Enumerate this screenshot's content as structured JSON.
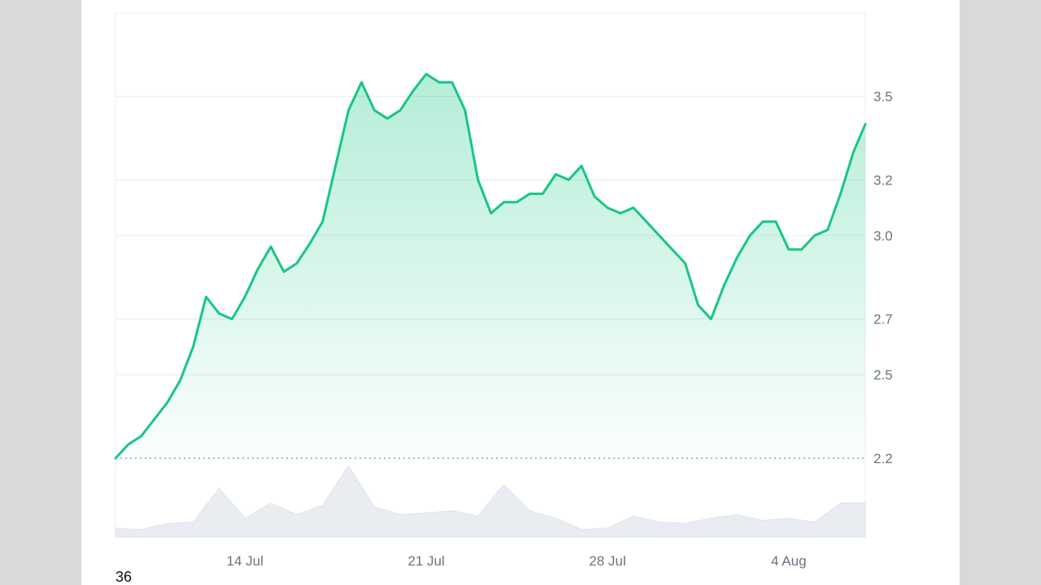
{
  "footer_number": "36",
  "colors": {
    "line": "#16c784",
    "fill_top": "#16c784",
    "grid": "#e8eaee",
    "baseline": "#9aa0a6",
    "volume_fill": "#e9edf2",
    "axis_text": "#6b7280"
  },
  "chart_data": {
    "type": "area",
    "title": "",
    "xlabel": "",
    "ylabel": "",
    "grid": true,
    "x_start": "2024-07-09",
    "x_end": "2024-08-06",
    "ylim": [
      2.2,
      3.7
    ],
    "baseline_value": 2.2,
    "x_ticks": [
      {
        "label": "14 Jul",
        "date": "2024-07-14"
      },
      {
        "label": "21 Jul",
        "date": "2024-07-21"
      },
      {
        "label": "28 Jul",
        "date": "2024-07-28"
      },
      {
        "label": "4 Aug",
        "date": "2024-08-04"
      }
    ],
    "y_ticks": [
      {
        "label": "3.5",
        "value": 3.5
      },
      {
        "label": "3.2",
        "value": 3.2
      },
      {
        "label": "3.0",
        "value": 3.0
      },
      {
        "label": "2.7",
        "value": 2.7
      },
      {
        "label": "2.5",
        "value": 2.5
      },
      {
        "label": "2.2",
        "value": 2.2
      }
    ],
    "series": [
      {
        "x": [
          "2024-07-09 00:00",
          "2024-07-09 12:00",
          "2024-07-10 00:00",
          "2024-07-10 12:00",
          "2024-07-11 00:00",
          "2024-07-11 12:00",
          "2024-07-12 00:00",
          "2024-07-12 12:00",
          "2024-07-13 00:00",
          "2024-07-13 12:00",
          "2024-07-14 00:00",
          "2024-07-14 12:00",
          "2024-07-15 00:00",
          "2024-07-15 12:00",
          "2024-07-16 00:00",
          "2024-07-16 12:00",
          "2024-07-17 00:00",
          "2024-07-17 12:00",
          "2024-07-18 00:00",
          "2024-07-18 12:00",
          "2024-07-19 00:00",
          "2024-07-19 12:00",
          "2024-07-20 00:00",
          "2024-07-20 12:00",
          "2024-07-21 00:00",
          "2024-07-21 12:00",
          "2024-07-22 00:00",
          "2024-07-22 12:00",
          "2024-07-23 00:00",
          "2024-07-23 12:00",
          "2024-07-24 00:00",
          "2024-07-24 12:00",
          "2024-07-25 00:00",
          "2024-07-25 12:00",
          "2024-07-26 00:00",
          "2024-07-26 12:00",
          "2024-07-27 00:00",
          "2024-07-27 12:00",
          "2024-07-28 00:00",
          "2024-07-28 12:00",
          "2024-07-29 00:00",
          "2024-07-29 12:00",
          "2024-07-30 00:00",
          "2024-07-30 12:00",
          "2024-07-31 00:00",
          "2024-07-31 12:00",
          "2024-08-01 00:00",
          "2024-08-01 12:00",
          "2024-08-02 00:00",
          "2024-08-02 12:00",
          "2024-08-03 00:00",
          "2024-08-03 12:00",
          "2024-08-04 00:00",
          "2024-08-04 12:00",
          "2024-08-05 00:00",
          "2024-08-05 12:00",
          "2024-08-06 00:00",
          "2024-08-06 12:00",
          "2024-08-06 23:00"
        ],
        "values": [
          2.2,
          2.25,
          2.28,
          2.34,
          2.4,
          2.48,
          2.6,
          2.78,
          2.72,
          2.7,
          2.78,
          2.88,
          2.96,
          2.87,
          2.9,
          2.97,
          3.05,
          3.25,
          3.45,
          3.55,
          3.45,
          3.42,
          3.45,
          3.52,
          3.58,
          3.55,
          3.55,
          3.45,
          3.2,
          3.08,
          3.12,
          3.12,
          3.15,
          3.15,
          3.22,
          3.2,
          3.25,
          3.14,
          3.1,
          3.08,
          3.1,
          3.05,
          3.0,
          2.95,
          2.9,
          2.75,
          2.7,
          2.82,
          2.92,
          3.0,
          3.05,
          3.05,
          2.95,
          2.95,
          3.0,
          3.02,
          3.15,
          3.3,
          3.4
        ]
      }
    ],
    "volume": {
      "x": [
        "2024-07-09",
        "2024-07-10",
        "2024-07-11",
        "2024-07-12",
        "2024-07-13",
        "2024-07-14",
        "2024-07-15",
        "2024-07-16",
        "2024-07-17",
        "2024-07-18",
        "2024-07-19",
        "2024-07-20",
        "2024-07-21",
        "2024-07-22",
        "2024-07-23",
        "2024-07-24",
        "2024-07-25",
        "2024-07-26",
        "2024-07-27",
        "2024-07-28",
        "2024-07-29",
        "2024-07-30",
        "2024-07-31",
        "2024-08-01",
        "2024-08-02",
        "2024-08-03",
        "2024-08-04",
        "2024-08-05",
        "2024-08-06"
      ],
      "values": [
        0.12,
        0.1,
        0.18,
        0.2,
        0.65,
        0.25,
        0.45,
        0.3,
        0.42,
        0.95,
        0.4,
        0.3,
        0.32,
        0.35,
        0.28,
        0.7,
        0.35,
        0.25,
        0.1,
        0.12,
        0.28,
        0.2,
        0.18,
        0.25,
        0.3,
        0.22,
        0.25,
        0.2,
        0.45
      ]
    }
  }
}
